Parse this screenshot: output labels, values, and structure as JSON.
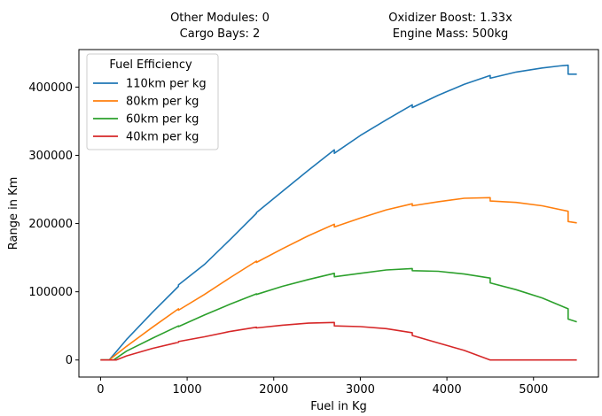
{
  "header": {
    "other_modules": "Other Modules: 0",
    "cargo_bays": "Cargo Bays: 2",
    "oxidizer_boost": "Oxidizer Boost: 1.33x",
    "engine_mass": "Engine Mass: 500kg"
  },
  "chart_data": {
    "type": "line",
    "title": "",
    "xlabel": "Fuel in Kg",
    "ylabel": "Range in Km",
    "xlim": [
      -250,
      5750
    ],
    "ylim": [
      -25000,
      455000
    ],
    "xticks": [
      0,
      1000,
      2000,
      3000,
      4000,
      5000
    ],
    "yticks": [
      0,
      100000,
      200000,
      300000,
      400000
    ],
    "grid": false,
    "legend": {
      "title": "Fuel Efficiency",
      "placement": "top-left"
    },
    "series": [
      {
        "name": "110km per kg",
        "color": "#1f77b4",
        "points": [
          [
            0,
            0
          ],
          [
            100,
            0
          ],
          [
            300,
            30000
          ],
          [
            600,
            70000
          ],
          [
            900,
            108000
          ],
          [
            900,
            110000
          ],
          [
            1200,
            140000
          ],
          [
            1500,
            177000
          ],
          [
            1800,
            215000
          ],
          [
            1800,
            216000
          ],
          [
            2100,
            247000
          ],
          [
            2400,
            278000
          ],
          [
            2700,
            308000
          ],
          [
            2700,
            303000
          ],
          [
            3000,
            329000
          ],
          [
            3300,
            352000
          ],
          [
            3600,
            374000
          ],
          [
            3600,
            370000
          ],
          [
            3900,
            388000
          ],
          [
            4200,
            404000
          ],
          [
            4500,
            417000
          ],
          [
            4500,
            413000
          ],
          [
            4800,
            422000
          ],
          [
            5100,
            428000
          ],
          [
            5300,
            431000
          ],
          [
            5400,
            432000
          ],
          [
            5400,
            419000
          ],
          [
            5500,
            419000
          ]
        ]
      },
      {
        "name": "80km per kg",
        "color": "#ff7f0e",
        "points": [
          [
            0,
            0
          ],
          [
            100,
            0
          ],
          [
            300,
            20000
          ],
          [
            600,
            48000
          ],
          [
            900,
            75000
          ],
          [
            900,
            73000
          ],
          [
            1200,
            96000
          ],
          [
            1500,
            121000
          ],
          [
            1800,
            145000
          ],
          [
            1800,
            143000
          ],
          [
            2100,
            163000
          ],
          [
            2400,
            182000
          ],
          [
            2700,
            199000
          ],
          [
            2700,
            195000
          ],
          [
            3000,
            208000
          ],
          [
            3300,
            220000
          ],
          [
            3600,
            229000
          ],
          [
            3600,
            226000
          ],
          [
            3900,
            232000
          ],
          [
            4200,
            237000
          ],
          [
            4500,
            238000
          ],
          [
            4500,
            233000
          ],
          [
            4800,
            231000
          ],
          [
            5100,
            226000
          ],
          [
            5400,
            218000
          ],
          [
            5400,
            203000
          ],
          [
            5500,
            201000
          ]
        ]
      },
      {
        "name": "60km per kg",
        "color": "#2ca02c",
        "points": [
          [
            0,
            0
          ],
          [
            150,
            0
          ],
          [
            300,
            13000
          ],
          [
            600,
            32000
          ],
          [
            900,
            50000
          ],
          [
            900,
            49000
          ],
          [
            1200,
            66000
          ],
          [
            1500,
            82000
          ],
          [
            1800,
            97000
          ],
          [
            1800,
            96000
          ],
          [
            2100,
            108000
          ],
          [
            2400,
            118000
          ],
          [
            2700,
            127000
          ],
          [
            2700,
            122000
          ],
          [
            3000,
            127000
          ],
          [
            3300,
            132000
          ],
          [
            3600,
            134000
          ],
          [
            3600,
            131000
          ],
          [
            3900,
            130000
          ],
          [
            4200,
            126000
          ],
          [
            4500,
            120000
          ],
          [
            4500,
            113000
          ],
          [
            4800,
            103000
          ],
          [
            5100,
            91000
          ],
          [
            5400,
            75000
          ],
          [
            5400,
            60000
          ],
          [
            5500,
            56000
          ]
        ]
      },
      {
        "name": "40km per kg",
        "color": "#d62728",
        "points": [
          [
            0,
            0
          ],
          [
            180,
            0
          ],
          [
            300,
            6000
          ],
          [
            600,
            17000
          ],
          [
            900,
            26000
          ],
          [
            900,
            27000
          ],
          [
            1200,
            34000
          ],
          [
            1500,
            42000
          ],
          [
            1800,
            48000
          ],
          [
            1800,
            47000
          ],
          [
            2100,
            51000
          ],
          [
            2400,
            54000
          ],
          [
            2700,
            55000
          ],
          [
            2700,
            50000
          ],
          [
            3000,
            49000
          ],
          [
            3300,
            46000
          ],
          [
            3600,
            40000
          ],
          [
            3600,
            36000
          ],
          [
            3900,
            25000
          ],
          [
            4200,
            14000
          ],
          [
            4500,
            0
          ],
          [
            5500,
            0
          ]
        ]
      }
    ]
  }
}
